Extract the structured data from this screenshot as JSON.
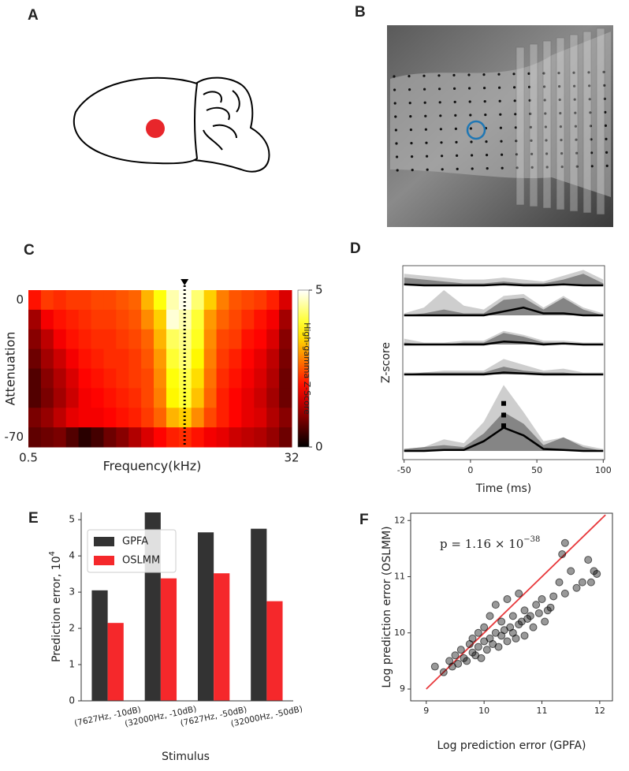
{
  "panel_labels": [
    "A",
    "B",
    "C",
    "D",
    "E",
    "F"
  ],
  "chart_data": [
    {
      "type": "heatmap",
      "xlabel": "Frequency(kHz)",
      "ylabel": "Attenuation",
      "log_x": true,
      "xlim": [
        0.5,
        32
      ],
      "xticks": [
        0.5,
        32
      ],
      "ylim": [
        -75,
        5
      ],
      "yticks": [
        0,
        -70
      ],
      "y": [
        0,
        -10,
        -20,
        -30,
        -40,
        -50,
        -60,
        -70
      ],
      "zlim": [
        0,
        5
      ],
      "zticks": [
        0,
        5
      ],
      "zlabel": "High-gamma Z-Score",
      "colormap": "hot",
      "marker_x": 5.9,
      "values": [
        [
          2.0,
          2.3,
          2.2,
          2.3,
          2.3,
          2.4,
          2.4,
          2.5,
          2.6,
          3.2,
          3.8,
          4.6,
          4.9,
          4.3,
          3.4,
          2.8,
          2.5,
          2.4,
          2.3,
          2.1,
          1.6
        ],
        [
          1.2,
          1.8,
          2.0,
          2.1,
          2.2,
          2.3,
          2.3,
          2.4,
          2.5,
          2.9,
          3.4,
          4.8,
          4.6,
          4.0,
          3.0,
          2.6,
          2.4,
          2.2,
          2.0,
          1.8,
          1.2
        ],
        [
          1.0,
          1.4,
          1.8,
          2.0,
          2.1,
          2.2,
          2.2,
          2.3,
          2.4,
          2.6,
          3.2,
          4.2,
          4.4,
          3.9,
          2.9,
          2.4,
          2.3,
          2.0,
          1.9,
          1.6,
          1.0
        ],
        [
          0.8,
          1.2,
          1.5,
          1.8,
          2.0,
          2.1,
          2.2,
          2.2,
          2.3,
          2.5,
          3.0,
          4.0,
          4.3,
          3.7,
          2.8,
          2.3,
          2.1,
          1.9,
          1.7,
          1.4,
          0.9
        ],
        [
          0.6,
          1.0,
          1.3,
          1.6,
          1.9,
          2.0,
          2.1,
          2.2,
          2.3,
          2.4,
          2.9,
          3.8,
          4.1,
          3.5,
          2.7,
          2.2,
          2.0,
          1.8,
          1.6,
          1.3,
          0.8
        ],
        [
          0.6,
          0.9,
          1.2,
          1.5,
          1.8,
          1.9,
          2.0,
          2.1,
          2.2,
          2.4,
          2.8,
          3.7,
          4.0,
          3.3,
          2.6,
          2.1,
          1.9,
          1.7,
          1.5,
          1.2,
          0.8
        ],
        [
          0.9,
          1.1,
          1.4,
          1.7,
          1.8,
          1.8,
          1.9,
          2.0,
          2.1,
          2.3,
          2.6,
          3.2,
          3.4,
          2.9,
          2.4,
          2.1,
          1.9,
          1.7,
          1.6,
          1.3,
          1.0
        ],
        [
          0.7,
          0.8,
          0.9,
          0.6,
          0.3,
          0.5,
          0.8,
          1.0,
          1.3,
          1.6,
          1.9,
          2.1,
          2.2,
          2.0,
          1.8,
          1.7,
          1.5,
          1.4,
          1.3,
          1.1,
          0.8
        ]
      ]
    },
    {
      "type": "line",
      "xlabel": "Time (ms)",
      "ylabel": "Z-score",
      "xlim": [
        -51,
        101
      ],
      "xticks": [
        -50,
        0,
        50,
        100
      ],
      "colors": {
        "light": "#c9c9c9",
        "dark": "#7d7d7d",
        "mean": "#000000"
      },
      "x": [
        -50,
        -35,
        -20,
        -5,
        10,
        25,
        40,
        55,
        70,
        85,
        100
      ],
      "series": [
        {
          "light": [
            0.6,
            0.5,
            0.4,
            0.3,
            0.3,
            0.4,
            0.3,
            0.2,
            0.5,
            0.8,
            0.3
          ],
          "dark": [
            0.4,
            0.3,
            0.2,
            0.1,
            0.1,
            0.2,
            0.1,
            0.1,
            0.3,
            0.6,
            0.1
          ],
          "values": [
            0.05,
            0,
            0,
            0,
            0,
            0.05,
            0,
            0,
            0.05,
            0,
            0
          ]
        },
        {
          "light": [
            0.1,
            0.4,
            1.3,
            0.5,
            0.3,
            1.0,
            1.1,
            0.4,
            1.0,
            0.4,
            0.1
          ],
          "dark": [
            0,
            0.1,
            0.3,
            0.1,
            0.1,
            0.8,
            0.9,
            0.3,
            0.9,
            0.3,
            0
          ],
          "values": [
            0,
            0,
            0,
            0,
            0,
            0.2,
            0.4,
            0.1,
            0.1,
            0,
            0
          ]
        },
        {
          "light": [
            0.3,
            0.1,
            0.1,
            0.2,
            0.2,
            0.7,
            0.5,
            0.2,
            0.2,
            0.1,
            0.1
          ],
          "dark": [
            0.1,
            0,
            0,
            0.1,
            0.1,
            0.6,
            0.4,
            0.1,
            0.1,
            0,
            0
          ],
          "values": [
            0,
            0,
            0,
            0,
            0,
            0.15,
            0.1,
            0,
            0.05,
            0,
            0
          ]
        },
        {
          "light": [
            0.1,
            0.1,
            0.2,
            0.2,
            0.2,
            0.8,
            0.5,
            0.2,
            0.3,
            0.1,
            0.1
          ],
          "dark": [
            0,
            0.1,
            0.1,
            0.1,
            0.1,
            0.4,
            0.2,
            0.1,
            0.1,
            0,
            0
          ],
          "values": [
            0,
            0,
            0,
            0,
            0,
            0.1,
            0.05,
            0,
            0,
            0,
            0
          ]
        },
        {
          "light": [
            0.1,
            0.2,
            0.6,
            0.4,
            1.5,
            3.4,
            2.0,
            0.5,
            0.7,
            0.3,
            0.1
          ],
          "dark": [
            0.1,
            0.2,
            0.3,
            0.2,
            0.9,
            2.0,
            1.4,
            0.3,
            0.7,
            0.2,
            0
          ],
          "values": [
            0,
            0,
            0.05,
            0.05,
            0.5,
            1.2,
            0.8,
            0.1,
            0.05,
            0,
            0
          ]
        }
      ],
      "sig_x": 25,
      "sig_markers": [
        1.3,
        1.85,
        2.45
      ]
    },
    {
      "type": "bar",
      "xlabel": "Stimulus",
      "ylabel": "Prediction error, 10",
      "ylabel_exponent": "4",
      "categories": [
        "(7627Hz, -10dB)",
        "(32000Hz, -10dB)",
        "(7627Hz, -50dB)",
        "(32000Hz, -50dB)"
      ],
      "ylim": [
        0,
        5.2
      ],
      "yticks": [
        0,
        1,
        2,
        3,
        4,
        5
      ],
      "legend": "upper left",
      "series": [
        {
          "name": "GPFA",
          "color": "#333333",
          "values": [
            3.05,
            5.2,
            4.65,
            4.75
          ]
        },
        {
          "name": "OSLMM",
          "color": "#f5282b",
          "values": [
            2.15,
            3.38,
            3.52,
            2.75
          ]
        }
      ]
    },
    {
      "type": "scatter",
      "xlabel": "Log prediction error (GPFA)",
      "ylabel": "Log prediction error (OSLMM)",
      "annotation": "p = 1.16 × 10",
      "annotation_exponent": "−38",
      "xlim": [
        8.73,
        12.22
      ],
      "xticks": [
        9,
        10,
        11,
        12
      ],
      "ylim": [
        8.79,
        12.13
      ],
      "yticks": [
        9,
        10,
        11,
        12
      ],
      "color": "#000000",
      "reference_line": {
        "x": [
          9,
          12.1
        ],
        "y": [
          9,
          12.1
        ],
        "color": "#e8393c"
      },
      "x": [
        9.15,
        9.3,
        9.4,
        9.45,
        9.5,
        9.55,
        9.6,
        9.65,
        9.7,
        9.75,
        9.8,
        9.8,
        9.85,
        9.9,
        9.9,
        9.95,
        10.0,
        10.0,
        10.05,
        10.1,
        10.1,
        10.15,
        10.2,
        10.2,
        10.25,
        10.3,
        10.3,
        10.35,
        10.4,
        10.4,
        10.45,
        10.5,
        10.5,
        10.55,
        10.6,
        10.6,
        10.65,
        10.7,
        10.7,
        10.75,
        10.8,
        10.85,
        10.9,
        10.95,
        11.0,
        11.05,
        11.1,
        11.15,
        11.2,
        11.3,
        11.35,
        11.4,
        11.4,
        11.5,
        11.6,
        11.7,
        11.8,
        11.85,
        11.9,
        11.95
      ],
      "y": [
        9.4,
        9.3,
        9.5,
        9.4,
        9.6,
        9.45,
        9.7,
        9.55,
        9.5,
        9.8,
        9.65,
        9.9,
        9.6,
        9.75,
        10.0,
        9.55,
        9.85,
        10.1,
        9.7,
        9.9,
        10.3,
        9.8,
        10.0,
        10.5,
        9.75,
        9.95,
        10.2,
        10.05,
        9.85,
        10.6,
        10.1,
        10.0,
        10.3,
        9.9,
        10.15,
        10.7,
        10.2,
        10.4,
        9.95,
        10.25,
        10.3,
        10.1,
        10.5,
        10.35,
        10.6,
        10.2,
        10.4,
        10.45,
        10.65,
        10.9,
        11.4,
        10.7,
        11.6,
        11.1,
        10.8,
        10.9,
        11.3,
        10.9,
        11.1,
        11.05
      ]
    }
  ]
}
